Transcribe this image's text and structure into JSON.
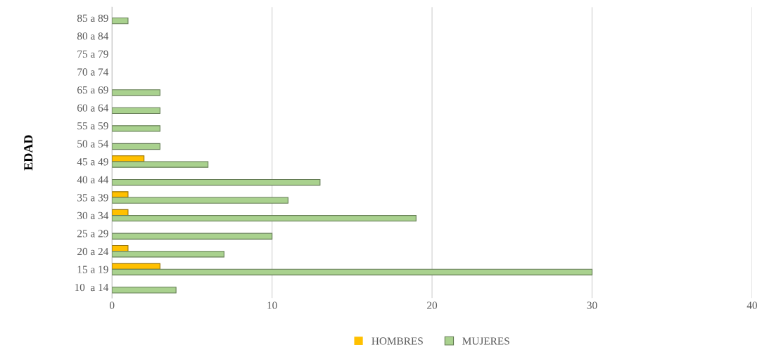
{
  "chart_data": {
    "type": "bar",
    "orientation": "horizontal",
    "ylabel": "EDAD",
    "categories": [
      "85 a 89",
      "80 a 84",
      "75 a 79",
      "70 a 74",
      "65 a 69",
      "60 a 64",
      "55 a 59",
      "50 a 54",
      "45 a 49",
      "40 a 44",
      "35 a 39",
      "30 a 34",
      "25 a 29",
      "20 a 24",
      "15 a 19",
      "10  a 14"
    ],
    "series": [
      {
        "name": "HOMBRES",
        "color": "#ffc000",
        "values": [
          0,
          0,
          0,
          0,
          0,
          0,
          0,
          0,
          2,
          0,
          1,
          1,
          0,
          1,
          3,
          0
        ]
      },
      {
        "name": "MUJERES",
        "color": "#a9d18e",
        "values": [
          1,
          0,
          0,
          0,
          3,
          3,
          3,
          3,
          6,
          13,
          11,
          19,
          10,
          7,
          30,
          4
        ]
      }
    ],
    "xlim": [
      0,
      40
    ],
    "xticks": [
      0,
      10,
      20,
      30,
      40
    ],
    "grid": "x",
    "legend": "bottom"
  }
}
